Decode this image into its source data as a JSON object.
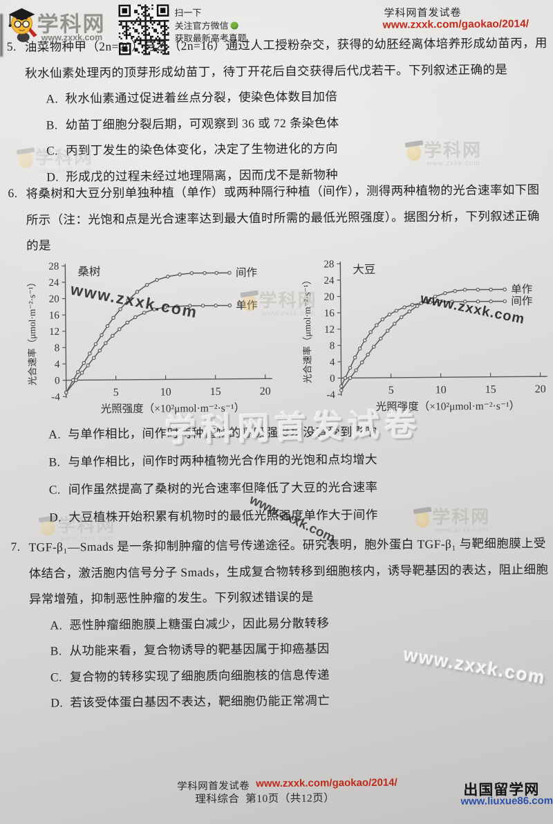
{
  "header": {
    "logo": {
      "site_name": "学科网",
      "site_url": "www.zxxk.com"
    },
    "qr_caption": [
      "扫一下",
      "关注官方微信",
      "获取最新高考真题"
    ],
    "issue_title": "学科网首发试卷",
    "issue_url": "www.zxxk.com/gaokao/2014/"
  },
  "questions": [
    {
      "number": "5.",
      "stem_lines": [
        "油菜物种甲（2n=20）与乙（2n=16）通过人工授粉杂交，获得的幼胚经离体培养形成幼苗丙，用",
        "秋水仙素处理丙的顶芽形成幼苗丁，待丁开花后自交获得后代戊若干。下列叙述正确的是"
      ],
      "options": [
        {
          "label": "A.",
          "text": "秋水仙素通过促进着丝点分裂，使染色体数目加倍"
        },
        {
          "label": "B.",
          "text": "幼苗丁细胞分裂后期，可观察到 36 或 72 条染色体"
        },
        {
          "label": "C.",
          "text": "丙到丁发生的染色体变化，决定了生物进化的方向"
        },
        {
          "label": "D.",
          "text": "形成戊的过程未经过地理隔离，因而戊不是新物种"
        }
      ]
    },
    {
      "number": "6.",
      "stem_lines": [
        "将桑树和大豆分别单独种植（单作）或两种隔行种植（间作），测得两种植物的光合速率如下图",
        "所示（注：光饱和点是光合速率达到最大值时所需的最低光照强度）。据图分析，下列叙述正确",
        "的是"
      ],
      "options": [
        {
          "label": "A.",
          "text": "与单作相比，间作时两种植物的呼吸强度均没有受到影响"
        },
        {
          "label": "B.",
          "text": "与单作相比，间作时两种植物光合作用的光饱和点均增大"
        },
        {
          "label": "C.",
          "text": "间作虽然提高了桑树的光合速率但降低了大豆的光合速率"
        },
        {
          "label": "D.",
          "text": "大豆植株开始积累有机物时的最低光照强度单作大于间作"
        }
      ]
    },
    {
      "number": "7.",
      "stem_lines": [
        "TGF-β₁—Smads 是一条抑制肿瘤的信号传递途径。研究表明，胞外蛋白 TGF-β₁ 与靶细胞膜上受",
        "体结合，激活胞内信号分子 Smads，生成复合物转移到细胞核内，诱导靶基因的表达，阻止细胞",
        "异常增殖，抑制恶性肿瘤的发生。下列叙述错误的是"
      ],
      "options": [
        {
          "label": "A.",
          "text": "恶性肿瘤细胞膜上糖蛋白减少，因此易分散转移"
        },
        {
          "label": "B.",
          "text": "从功能来看，复合物诱导的靶基因属于抑癌基因"
        },
        {
          "label": "C.",
          "text": "复合物的转移实现了细胞质向细胞核的信息传递"
        },
        {
          "label": "D.",
          "text": "若该受体蛋白基因不表达，靶细胞仍能正常凋亡"
        }
      ]
    }
  ],
  "watermarks": {
    "site_name": "学科网",
    "site_url": "www.zxxk.com",
    "embossed_title": "学科网首发试卷"
  },
  "footer": {
    "issue_title": "学科网首发试卷",
    "issue_url": "www.zxxk.com/gaokao/2014/",
    "subject": "理科综合",
    "page_info": "第10页（共12页）",
    "partner_name": "出国留学网",
    "partner_url": "www.liuxue86.com"
  },
  "chart_data": [
    {
      "type": "line",
      "title": "桑树",
      "xlabel": "光照强度（×10²μmol·m⁻²·s⁻¹）",
      "ylabel": "光合速率（μmol·m⁻²·s⁻¹）",
      "xlim": [
        0,
        20
      ],
      "ylim": [
        -4,
        28
      ],
      "xticks": [
        5,
        10,
        15,
        20
      ],
      "yticks": [
        -4,
        0,
        4,
        8,
        12,
        16,
        20,
        24,
        28
      ],
      "legend_position": "right-of-curve-end",
      "grid": false,
      "series": [
        {
          "name": "间作",
          "x": [
            0,
            0.7,
            1.2,
            1.8,
            2.4,
            3,
            3.6,
            4.2,
            4.8,
            5.5,
            6.3,
            7.2,
            8.2,
            9.2,
            10.3,
            11.5,
            12.7,
            14,
            15.2,
            16.5
          ],
          "y": [
            -3,
            0,
            2,
            4.2,
            6.5,
            8.8,
            11,
            13.2,
            15.2,
            17.3,
            19.5,
            21.5,
            23.2,
            24.4,
            25.2,
            25.7,
            26,
            26,
            26,
            26
          ]
        },
        {
          "name": "单作",
          "x": [
            0,
            1,
            1.6,
            2.2,
            2.8,
            3.4,
            4,
            4.7,
            5.4,
            6.2,
            7,
            7.9,
            8.9,
            10,
            11.2,
            12.5,
            13.8,
            15.1,
            16.5
          ],
          "y": [
            -3,
            0,
            1.8,
            3.6,
            5.4,
            7.2,
            9,
            10.8,
            12.4,
            14,
            15.3,
            16.4,
            17.2,
            17.7,
            17.9,
            18,
            18,
            18,
            18
          ]
        }
      ]
    },
    {
      "type": "line",
      "title": "大豆",
      "xlabel": "光照强度（×10²μmol·m⁻²·s⁻¹）",
      "ylabel": "光合速率（μmol·m⁻²·s⁻¹）",
      "xlim": [
        0,
        20
      ],
      "ylim": [
        -4,
        28
      ],
      "xticks": [
        5,
        10,
        15,
        20
      ],
      "yticks": [
        -4,
        0,
        4,
        8,
        12,
        16,
        20,
        24,
        28
      ],
      "legend_position": "right-of-curve-end",
      "grid": false,
      "series": [
        {
          "name": "单作",
          "x": [
            0,
            0.9,
            1.5,
            2.1,
            2.7,
            3.3,
            4,
            4.7,
            5.4,
            6.1,
            6.9,
            7.7,
            8.6,
            9.5,
            10.5,
            11.5,
            12.5,
            13.8,
            15.1,
            16.5
          ],
          "y": [
            -3,
            0,
            1.9,
            3.8,
            5.7,
            7.6,
            9.6,
            11.5,
            13.2,
            14.8,
            16.2,
            17.5,
            18.7,
            19.8,
            20.6,
            21.1,
            21.4,
            21.4,
            21.4,
            21.4
          ]
        },
        {
          "name": "间作",
          "x": [
            0,
            0.4,
            0.9,
            1.4,
            1.9,
            2.4,
            3,
            3.6,
            4.2,
            4.9,
            5.6,
            6.4,
            7.2,
            8.1,
            9,
            10,
            11.2,
            12.5,
            13.8,
            15.1,
            16.5
          ],
          "y": [
            -2,
            0,
            2.5,
            5,
            7.2,
            9.2,
            11.2,
            12.9,
            14.3,
            15.5,
            16.4,
            17.2,
            17.8,
            18.2,
            18.4,
            18.5,
            18.5,
            18.5,
            18.5,
            18.5,
            18.5
          ]
        }
      ]
    }
  ]
}
